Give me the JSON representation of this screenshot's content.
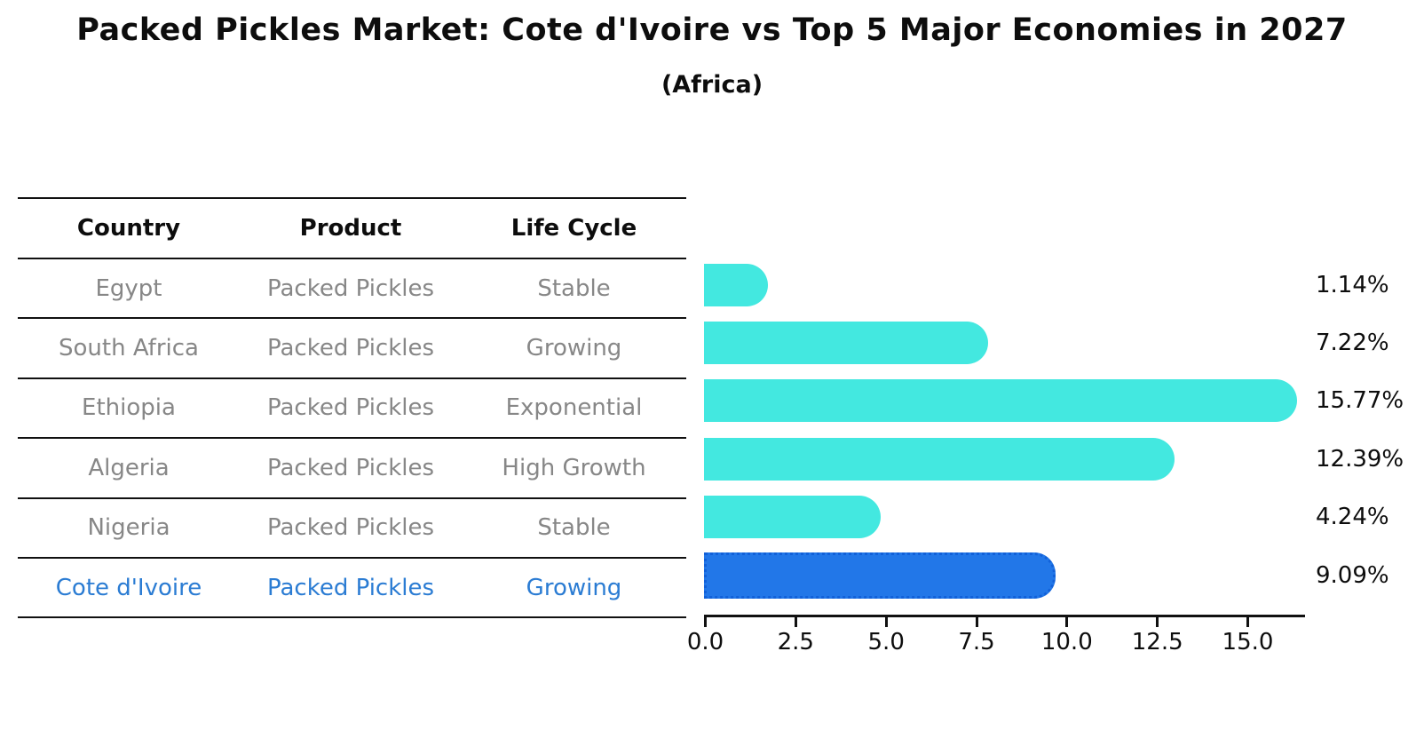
{
  "title": "Packed Pickles Market: Cote d'Ivoire vs Top 5 Major Economies in 2027",
  "subtitle": "(Africa)",
  "table": {
    "headers": {
      "country": "Country",
      "product": "Product",
      "life_cycle": "Life Cycle"
    },
    "rows": [
      {
        "country": "Egypt",
        "product": "Packed Pickles",
        "life_cycle": "Stable"
      },
      {
        "country": "South Africa",
        "product": "Packed Pickles",
        "life_cycle": "Growing"
      },
      {
        "country": "Ethiopia",
        "product": "Packed Pickles",
        "life_cycle": "Exponential"
      },
      {
        "country": "Algeria",
        "product": "Packed Pickles",
        "life_cycle": "High Growth"
      },
      {
        "country": "Nigeria",
        "product": "Packed Pickles",
        "life_cycle": "Stable"
      },
      {
        "country": "Cote d'Ivoire",
        "product": "Packed Pickles",
        "life_cycle": "Growing"
      }
    ]
  },
  "chart_data": {
    "type": "bar",
    "orientation": "horizontal",
    "title": "Packed Pickles Market: Cote d'Ivoire vs Top 5 Major Economies in 2027",
    "subtitle": "(Africa)",
    "categories": [
      "Egypt",
      "South Africa",
      "Ethiopia",
      "Algeria",
      "Nigeria",
      "Cote d'Ivoire"
    ],
    "values": [
      1.14,
      7.22,
      15.77,
      12.39,
      4.24,
      9.09
    ],
    "value_labels": [
      "1.14%",
      "7.22%",
      "15.77%",
      "12.39%",
      "4.24%",
      "9.09%"
    ],
    "xlim": [
      0,
      16.63
    ],
    "xtick_labels": [
      "0.0",
      "2.5",
      "5.0",
      "7.5",
      "10.0",
      "12.5",
      "15.0"
    ],
    "grid": false,
    "legend": "none",
    "highlight_index": 5,
    "bar_color": "#43E8E0",
    "highlight_color": "#2277E8",
    "highlight_border_color": "#1261D9",
    "text_muted_color": "#878787",
    "text_highlight_color": "#2B7CD3",
    "axis_color": "#111111"
  }
}
